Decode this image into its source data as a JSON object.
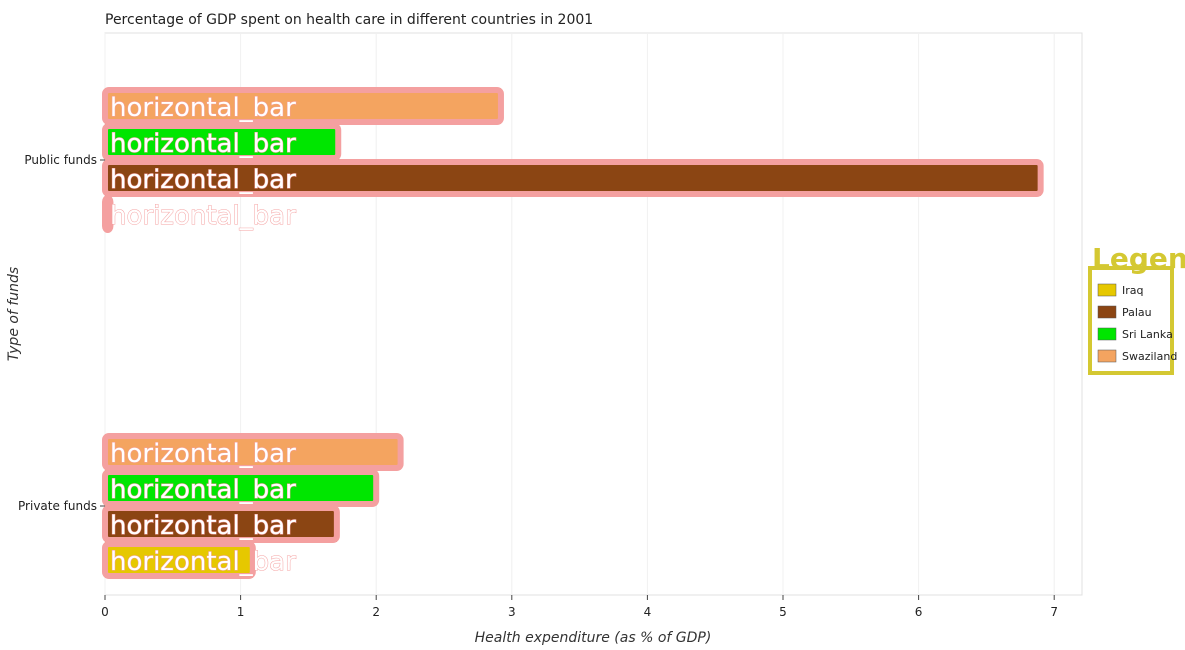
{
  "chart_data": {
    "type": "bar",
    "orientation": "horizontal",
    "title": "Percentage of GDP spent on health care in different countries in 2001",
    "xlabel": "Health expenditure (as % of GDP)",
    "ylabel": "Type of funds",
    "categories": [
      "Private funds",
      "Public funds"
    ],
    "xlim": [
      0,
      7.2
    ],
    "xticks": [
      0,
      1,
      2,
      3,
      4,
      5,
      6,
      7
    ],
    "series": [
      {
        "name": "Iraq",
        "color": "#e6c800",
        "values": [
          1.09,
          0.04
        ]
      },
      {
        "name": "Palau",
        "color": "#8b4513",
        "values": [
          1.71,
          6.9
        ]
      },
      {
        "name": "Sri Lanka",
        "color": "#00e600",
        "values": [
          2.0,
          1.72
        ]
      },
      {
        "name": "Swaziland",
        "color": "#f4a460",
        "values": [
          2.18,
          2.92
        ]
      }
    ],
    "legend_title": "Legend",
    "legend_position": "right",
    "bar_label_text": "horizontal_bar"
  }
}
